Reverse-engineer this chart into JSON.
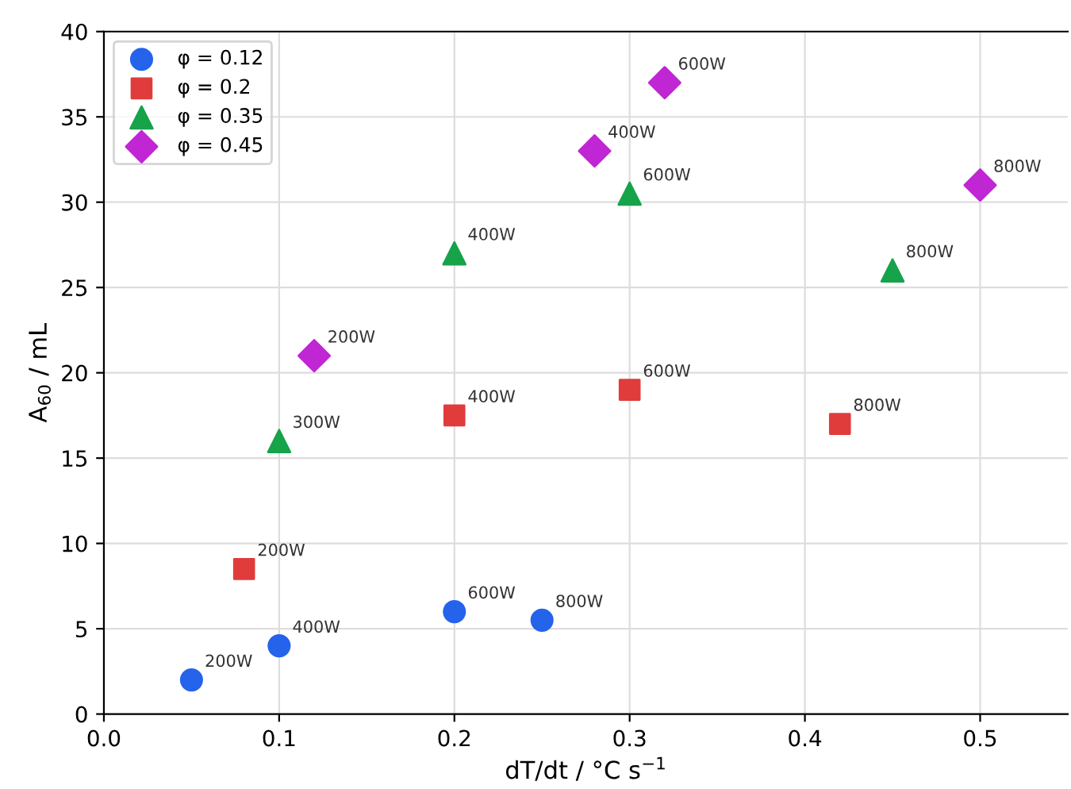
{
  "chart_data": {
    "type": "scatter",
    "xlabel": "dT/dt / °C s$^{−1}$",
    "ylabel": "A$_{60}$ / mL",
    "xlim": [
      0,
      0.55
    ],
    "ylim": [
      0,
      40
    ],
    "xticks": [
      {
        "value": 0,
        "label": "0.0"
      },
      0.1,
      0.2,
      0.3,
      0.4,
      0.5
    ],
    "yticks": [
      0,
      5,
      10,
      15,
      20,
      25,
      30,
      35,
      40
    ],
    "grid": true,
    "legend": "top left",
    "series": [
      {
        "name": "φ = 0.12",
        "color": "#2563eb",
        "marker": "circle",
        "x": [
          0.05,
          0.1,
          0.2,
          0.25
        ],
        "values": [
          2,
          4,
          6,
          5.5
        ]
      },
      {
        "name": "φ = 0.2",
        "color": "#e03c3c",
        "marker": "square",
        "x": [
          0.08,
          0.2,
          0.3,
          0.42
        ],
        "values": [
          8.5,
          17.5,
          19,
          17
        ]
      },
      {
        "name": "φ = 0.35",
        "color": "#16a34a",
        "marker": "triangle",
        "x": [
          0.1,
          0.2,
          0.3,
          0.45
        ],
        "values": [
          16,
          27,
          30.5,
          26
        ]
      },
      {
        "name": "φ = 0.45",
        "color": "#c026d3",
        "marker": "diamond",
        "x": [
          0.12,
          0.28,
          0.32,
          0.5
        ],
        "values": [
          21,
          33,
          37,
          31
        ]
      }
    ],
    "annotations": [
      {
        "text": "200W",
        "x": 0.05,
        "y": 2
      },
      {
        "text": "400W",
        "x": 0.1,
        "y": 4
      },
      {
        "text": "600W",
        "x": 0.2,
        "y": 6
      },
      {
        "text": "800W",
        "x": 0.25,
        "y": 5.5
      },
      {
        "text": "200W",
        "x": 0.08,
        "y": 8.5
      },
      {
        "text": "400W",
        "x": 0.2,
        "y": 17.5
      },
      {
        "text": "600W",
        "x": 0.3,
        "y": 19
      },
      {
        "text": "800W",
        "x": 0.42,
        "y": 17
      },
      {
        "text": "300W",
        "x": 0.1,
        "y": 16
      },
      {
        "text": "400W",
        "x": 0.2,
        "y": 27
      },
      {
        "text": "600W",
        "x": 0.3,
        "y": 30.5
      },
      {
        "text": "800W",
        "x": 0.45,
        "y": 26
      },
      {
        "text": "200W",
        "x": 0.12,
        "y": 21
      },
      {
        "text": "400W",
        "x": 0.28,
        "y": 33
      },
      {
        "text": "600W",
        "x": 0.32,
        "y": 37
      },
      {
        "text": "800W",
        "x": 0.5,
        "y": 31
      }
    ]
  }
}
